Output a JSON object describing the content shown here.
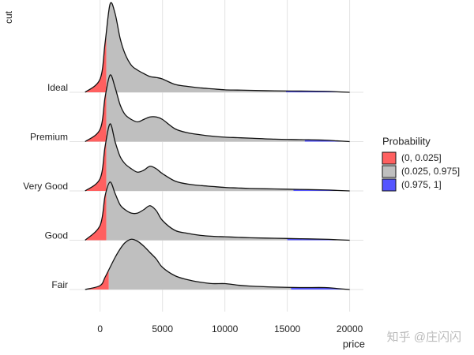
{
  "chart_data": {
    "type": "ridgeline",
    "x_label": "price",
    "y_label": "cut",
    "categories": [
      "Ideal",
      "Premium",
      "Very Good",
      "Good",
      "Fair"
    ],
    "x": [
      -1200,
      0,
      400,
      800,
      1200,
      1600,
      2000,
      2500,
      3000,
      3500,
      4000,
      4500,
      5000,
      6000,
      7000,
      8000,
      9000,
      10000,
      11000,
      12000,
      14000,
      16000,
      18000,
      19000,
      20000
    ],
    "series": [
      {
        "values": [
          0,
          0.27,
          1.0,
          1.79,
          1.6,
          1.1,
          0.78,
          0.55,
          0.45,
          0.38,
          0.32,
          0.3,
          0.27,
          0.16,
          0.12,
          0.09,
          0.07,
          0.05,
          0.045,
          0.04,
          0.03,
          0.025,
          0.02,
          0.01,
          0
        ],
        "quantiles": [
          500,
          14900
        ]
      },
      {
        "values": [
          0,
          0.25,
          0.9,
          1.35,
          1.1,
          0.75,
          0.55,
          0.45,
          0.4,
          0.45,
          0.5,
          0.5,
          0.45,
          0.26,
          0.18,
          0.14,
          0.11,
          0.09,
          0.08,
          0.07,
          0.05,
          0.04,
          0.03,
          0.015,
          0
        ],
        "quantiles": [
          500,
          16400
        ]
      },
      {
        "values": [
          0,
          0.25,
          0.9,
          1.36,
          1.0,
          0.7,
          0.55,
          0.45,
          0.38,
          0.42,
          0.5,
          0.45,
          0.35,
          0.2,
          0.14,
          0.11,
          0.09,
          0.07,
          0.06,
          0.05,
          0.04,
          0.03,
          0.02,
          0.01,
          0
        ],
        "quantiles": [
          500,
          15500
        ]
      },
      {
        "values": [
          0,
          0.3,
          0.9,
          1.18,
          0.95,
          0.72,
          0.62,
          0.55,
          0.55,
          0.62,
          0.7,
          0.6,
          0.4,
          0.2,
          0.14,
          0.1,
          0.08,
          0.07,
          0.06,
          0.05,
          0.04,
          0.03,
          0.02,
          0.01,
          0
        ],
        "quantiles": [
          500,
          15000
        ]
      },
      {
        "values": [
          0,
          0.08,
          0.25,
          0.45,
          0.65,
          0.82,
          0.95,
          1.02,
          0.98,
          0.88,
          0.75,
          0.62,
          0.45,
          0.28,
          0.2,
          0.15,
          0.12,
          0.12,
          0.09,
          0.07,
          0.05,
          0.04,
          0.04,
          0.02,
          0
        ],
        "quantiles": [
          700,
          15300
        ]
      }
    ],
    "xlim": [
      -1500,
      21100
    ],
    "xticks": [
      0,
      5000,
      10000,
      15000,
      20000
    ],
    "grid": true,
    "legend": {
      "title": "Probability",
      "position": "right",
      "items": [
        {
          "label": "(0, 0.025]",
          "color": "#ff6060"
        },
        {
          "label": "(0.025, 0.975]",
          "color": "#bfbfbf"
        },
        {
          "label": "(0.975, 1]",
          "color": "#5555ff"
        }
      ]
    },
    "watermark": "知乎 @庄闪闪"
  }
}
